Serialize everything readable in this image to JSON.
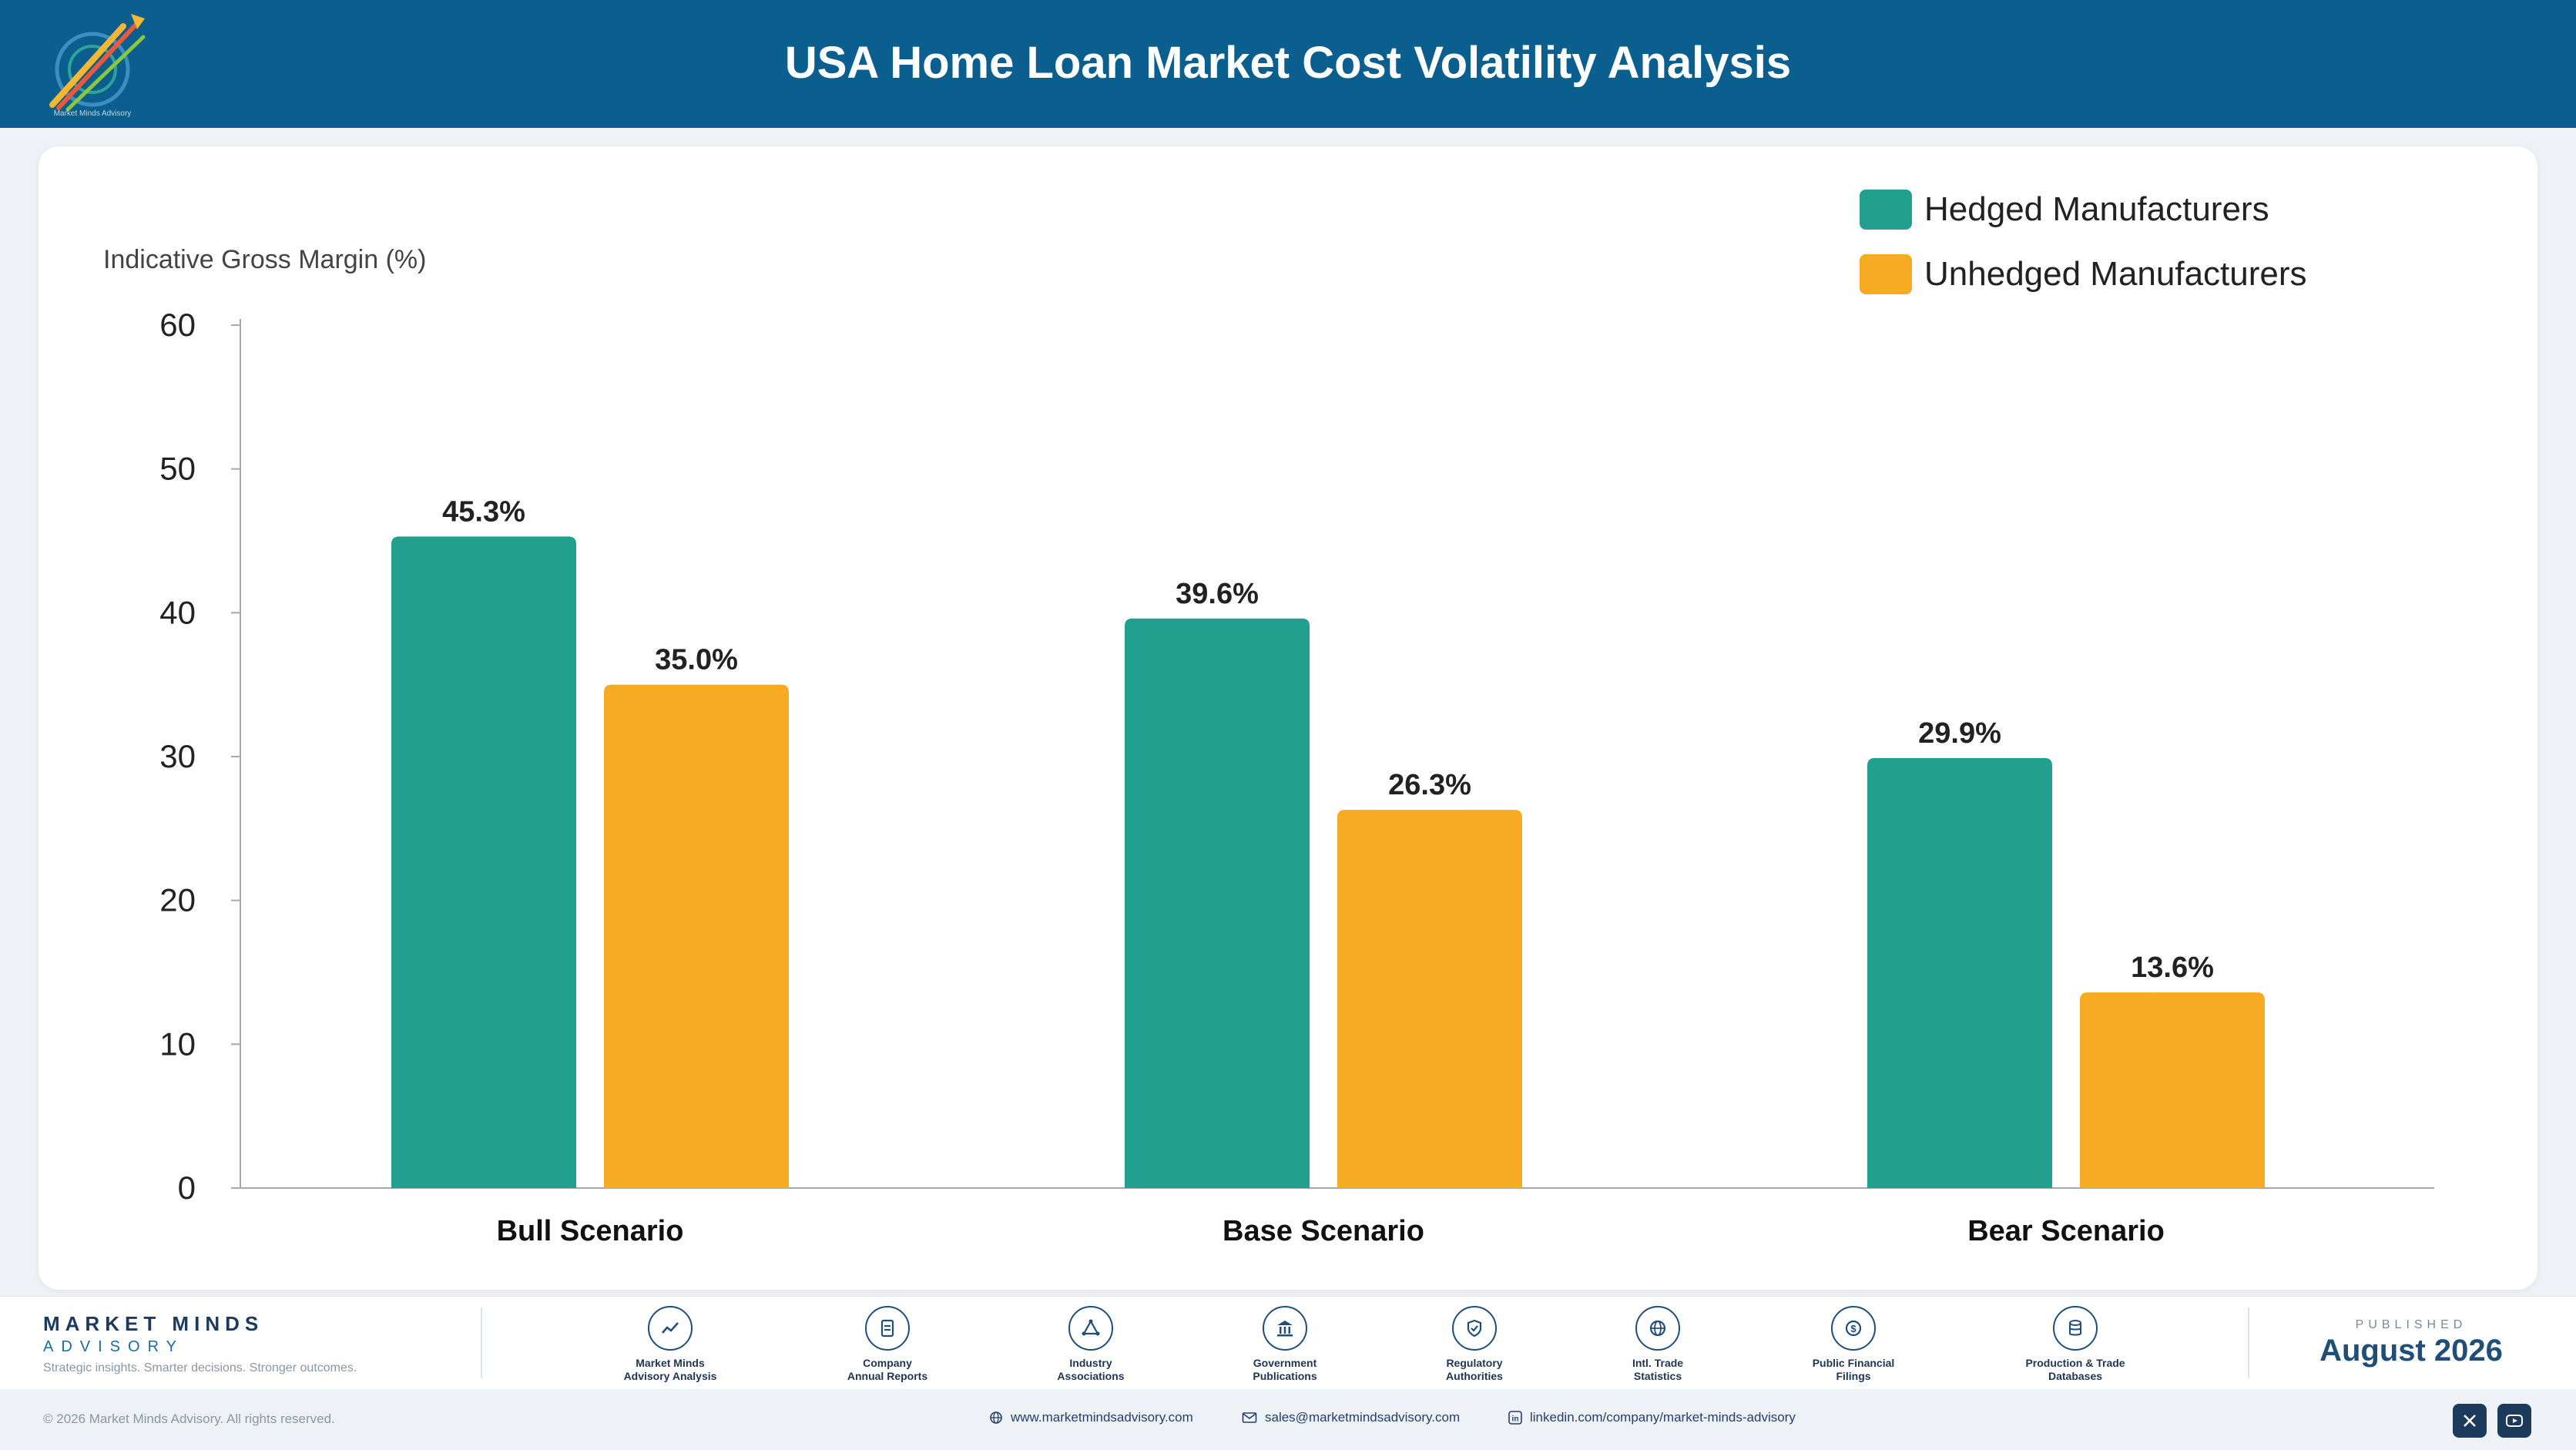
{
  "header": {
    "title": "USA Home Loan Market Cost Volatility Analysis",
    "logo_caption": "Market Minds Advisory"
  },
  "colors": {
    "header_bg": "#0a5f8f",
    "hedged": "#21a090",
    "unhedged": "#f7ab22",
    "text": "#222222"
  },
  "chart_data": {
    "type": "bar",
    "title": "",
    "ylabel": "Indicative Gross Margin (%)",
    "xlabel": "",
    "categories": [
      "Bull Scenario",
      "Base Scenario",
      "Bear Scenario"
    ],
    "series": [
      {
        "name": "Hedged Manufacturers",
        "values": [
          45.3,
          39.6,
          29.9
        ],
        "labels": [
          "45.3%",
          "39.6%",
          "29.9%"
        ],
        "color": "#21a090"
      },
      {
        "name": "Unhedged Manufacturers",
        "values": [
          35.0,
          26.3,
          13.6
        ],
        "labels": [
          "35.0%",
          "26.3%",
          "13.6%"
        ],
        "color": "#f7ab22"
      }
    ],
    "ylim": [
      0,
      60
    ],
    "yticks": [
      "0",
      "10",
      "20",
      "30",
      "40",
      "50",
      "60"
    ],
    "legend_position": "top-right",
    "grid": false
  },
  "footer": {
    "brand_name": "MARKET MINDS",
    "brand_sub": "ADVISORY",
    "brand_tagline": "Strategic insights. Smarter decisions. Stronger outcomes.",
    "sources": [
      {
        "label": "Market Minds\nAdvisory Analysis",
        "icon": "trend-chart-icon"
      },
      {
        "label": "Company\nAnnual Reports",
        "icon": "document-icon"
      },
      {
        "label": "Industry\nAssociations",
        "icon": "network-icon"
      },
      {
        "label": "Government\nPublications",
        "icon": "government-building-icon"
      },
      {
        "label": "Regulatory\nAuthorities",
        "icon": "shield-check-icon"
      },
      {
        "label": "Intl. Trade\nStatistics",
        "icon": "globe-icon"
      },
      {
        "label": "Public Financial\nFilings",
        "icon": "dollar-coin-icon"
      },
      {
        "label": "Production & Trade\nDatabases",
        "icon": "database-icon"
      }
    ],
    "published_label": "PUBLISHED",
    "published_date": "August 2026"
  },
  "bottom": {
    "copyright": "© 2026 Market Minds Advisory. All rights reserved.",
    "website": "www.marketmindsadvisory.com",
    "email": "sales@marketmindsadvisory.com",
    "linkedin": "linkedin.com/company/market-minds-advisory"
  }
}
